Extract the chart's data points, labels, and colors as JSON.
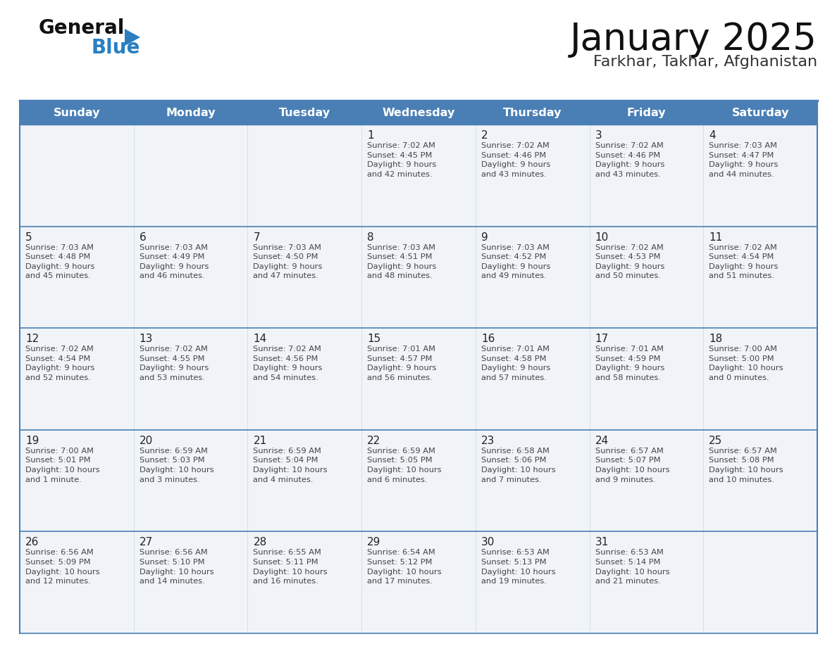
{
  "title": "January 2025",
  "subtitle": "Farkhar, Takhar, Afghanistan",
  "days_of_week": [
    "Sunday",
    "Monday",
    "Tuesday",
    "Wednesday",
    "Thursday",
    "Friday",
    "Saturday"
  ],
  "header_bg": "#4a7fb5",
  "header_text": "#ffffff",
  "row_bg": "#f0f4f8",
  "cell_border_color": "#4a7fb5",
  "day_number_color": "#222222",
  "text_color": "#444444",
  "title_color": "#111111",
  "subtitle_color": "#333333",
  "logo_general_color": "#111111",
  "logo_blue_color": "#2a7fc1",
  "logo_triangle_color": "#2a7fc1",
  "calendar_data": [
    [
      {
        "day": null,
        "info": null
      },
      {
        "day": null,
        "info": null
      },
      {
        "day": null,
        "info": null
      },
      {
        "day": 1,
        "info": "Sunrise: 7:02 AM\nSunset: 4:45 PM\nDaylight: 9 hours\nand 42 minutes."
      },
      {
        "day": 2,
        "info": "Sunrise: 7:02 AM\nSunset: 4:46 PM\nDaylight: 9 hours\nand 43 minutes."
      },
      {
        "day": 3,
        "info": "Sunrise: 7:02 AM\nSunset: 4:46 PM\nDaylight: 9 hours\nand 43 minutes."
      },
      {
        "day": 4,
        "info": "Sunrise: 7:03 AM\nSunset: 4:47 PM\nDaylight: 9 hours\nand 44 minutes."
      }
    ],
    [
      {
        "day": 5,
        "info": "Sunrise: 7:03 AM\nSunset: 4:48 PM\nDaylight: 9 hours\nand 45 minutes."
      },
      {
        "day": 6,
        "info": "Sunrise: 7:03 AM\nSunset: 4:49 PM\nDaylight: 9 hours\nand 46 minutes."
      },
      {
        "day": 7,
        "info": "Sunrise: 7:03 AM\nSunset: 4:50 PM\nDaylight: 9 hours\nand 47 minutes."
      },
      {
        "day": 8,
        "info": "Sunrise: 7:03 AM\nSunset: 4:51 PM\nDaylight: 9 hours\nand 48 minutes."
      },
      {
        "day": 9,
        "info": "Sunrise: 7:03 AM\nSunset: 4:52 PM\nDaylight: 9 hours\nand 49 minutes."
      },
      {
        "day": 10,
        "info": "Sunrise: 7:02 AM\nSunset: 4:53 PM\nDaylight: 9 hours\nand 50 minutes."
      },
      {
        "day": 11,
        "info": "Sunrise: 7:02 AM\nSunset: 4:54 PM\nDaylight: 9 hours\nand 51 minutes."
      }
    ],
    [
      {
        "day": 12,
        "info": "Sunrise: 7:02 AM\nSunset: 4:54 PM\nDaylight: 9 hours\nand 52 minutes."
      },
      {
        "day": 13,
        "info": "Sunrise: 7:02 AM\nSunset: 4:55 PM\nDaylight: 9 hours\nand 53 minutes."
      },
      {
        "day": 14,
        "info": "Sunrise: 7:02 AM\nSunset: 4:56 PM\nDaylight: 9 hours\nand 54 minutes."
      },
      {
        "day": 15,
        "info": "Sunrise: 7:01 AM\nSunset: 4:57 PM\nDaylight: 9 hours\nand 56 minutes."
      },
      {
        "day": 16,
        "info": "Sunrise: 7:01 AM\nSunset: 4:58 PM\nDaylight: 9 hours\nand 57 minutes."
      },
      {
        "day": 17,
        "info": "Sunrise: 7:01 AM\nSunset: 4:59 PM\nDaylight: 9 hours\nand 58 minutes."
      },
      {
        "day": 18,
        "info": "Sunrise: 7:00 AM\nSunset: 5:00 PM\nDaylight: 10 hours\nand 0 minutes."
      }
    ],
    [
      {
        "day": 19,
        "info": "Sunrise: 7:00 AM\nSunset: 5:01 PM\nDaylight: 10 hours\nand 1 minute."
      },
      {
        "day": 20,
        "info": "Sunrise: 6:59 AM\nSunset: 5:03 PM\nDaylight: 10 hours\nand 3 minutes."
      },
      {
        "day": 21,
        "info": "Sunrise: 6:59 AM\nSunset: 5:04 PM\nDaylight: 10 hours\nand 4 minutes."
      },
      {
        "day": 22,
        "info": "Sunrise: 6:59 AM\nSunset: 5:05 PM\nDaylight: 10 hours\nand 6 minutes."
      },
      {
        "day": 23,
        "info": "Sunrise: 6:58 AM\nSunset: 5:06 PM\nDaylight: 10 hours\nand 7 minutes."
      },
      {
        "day": 24,
        "info": "Sunrise: 6:57 AM\nSunset: 5:07 PM\nDaylight: 10 hours\nand 9 minutes."
      },
      {
        "day": 25,
        "info": "Sunrise: 6:57 AM\nSunset: 5:08 PM\nDaylight: 10 hours\nand 10 minutes."
      }
    ],
    [
      {
        "day": 26,
        "info": "Sunrise: 6:56 AM\nSunset: 5:09 PM\nDaylight: 10 hours\nand 12 minutes."
      },
      {
        "day": 27,
        "info": "Sunrise: 6:56 AM\nSunset: 5:10 PM\nDaylight: 10 hours\nand 14 minutes."
      },
      {
        "day": 28,
        "info": "Sunrise: 6:55 AM\nSunset: 5:11 PM\nDaylight: 10 hours\nand 16 minutes."
      },
      {
        "day": 29,
        "info": "Sunrise: 6:54 AM\nSunset: 5:12 PM\nDaylight: 10 hours\nand 17 minutes."
      },
      {
        "day": 30,
        "info": "Sunrise: 6:53 AM\nSunset: 5:13 PM\nDaylight: 10 hours\nand 19 minutes."
      },
      {
        "day": 31,
        "info": "Sunrise: 6:53 AM\nSunset: 5:14 PM\nDaylight: 10 hours\nand 21 minutes."
      },
      {
        "day": null,
        "info": null
      }
    ]
  ]
}
